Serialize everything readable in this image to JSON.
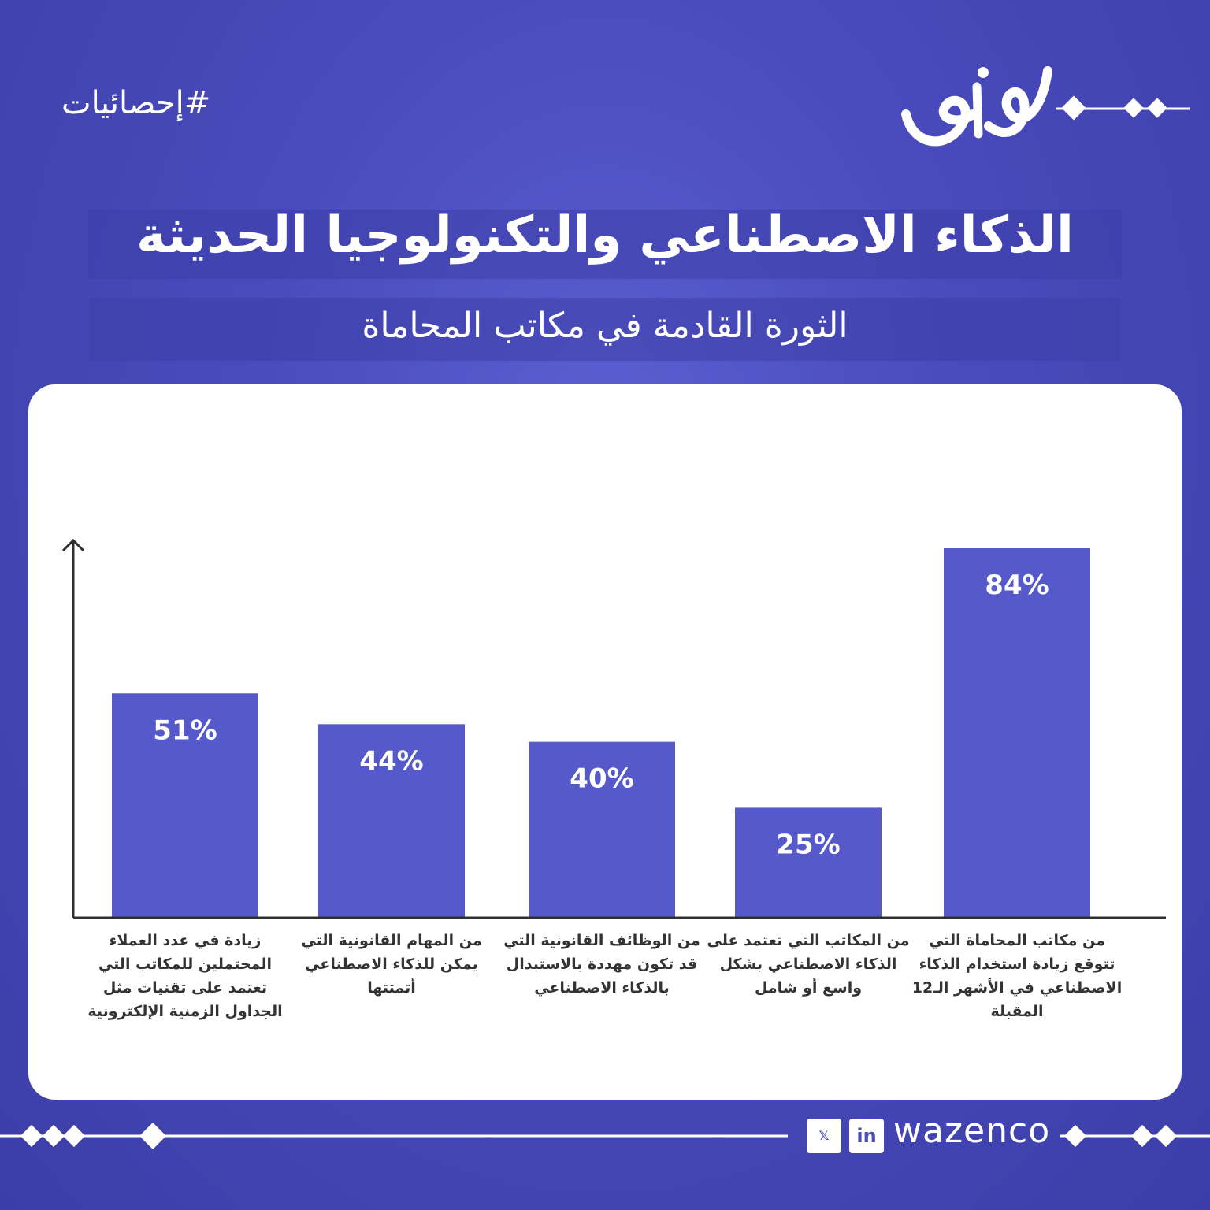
{
  "header": {
    "hashtag": "#إحصائيات",
    "logo_text": "وازن"
  },
  "title": "الذكاء الاصطناعي والتكنولوجيا الحديثة",
  "subtitle": "الثورة القادمة في مكاتب المحاماة",
  "chart_data": {
    "type": "bar",
    "categories": [
      "زيادة في عدد العملاء المحتملين للمكاتب التي تعتمد على تقنيات مثل الجداول الزمنية الإلكترونية",
      "من المهام القانونية التي يمكن للذكاء الاصطناعي أتمتتها",
      "من الوظائف القانونية التي قد تكون مهددة بالاستبدال بالذكاء الاصطناعي",
      "من المكاتب التي تعتمد على الذكاء الاصطناعي بشكل واسع أو شامل",
      "من مكاتب المحاماة التي تتوقع زيادة استخدام الذكاء الاصطناعي في الأشهر الـ12 المقبلة"
    ],
    "values": [
      51,
      44,
      40,
      25,
      84
    ],
    "value_labels": [
      "51%",
      "44%",
      "40%",
      "25%",
      "84%"
    ],
    "ylim": [
      0,
      84
    ],
    "bar_color": "#5559c9",
    "axis_color": "#2f2f2f",
    "grid": false
  },
  "footer": {
    "brand": "wazenco",
    "social": [
      "x-icon",
      "linkedin-icon"
    ]
  },
  "colors": {
    "background": "#4a4bbd",
    "card": "#ffffff",
    "text_light": "#ffffff"
  }
}
